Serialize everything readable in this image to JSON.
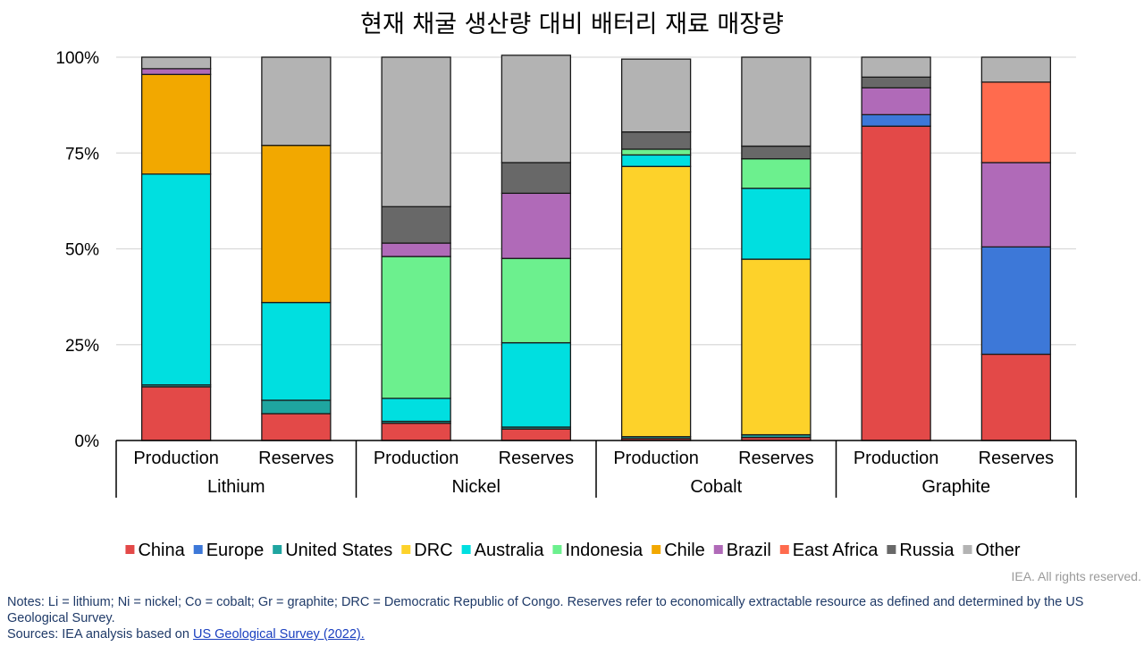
{
  "chart_data": {
    "type": "bar",
    "stacked": true,
    "normalized": true,
    "title": "현재 채굴 생산량 대비 배터리 재료 매장량",
    "ylim": [
      0,
      100
    ],
    "yticks": [
      {
        "value": 0,
        "label": "0%"
      },
      {
        "value": 25,
        "label": "25%"
      },
      {
        "value": 50,
        "label": "50%"
      },
      {
        "value": 75,
        "label": "75%"
      },
      {
        "value": 100,
        "label": "100%"
      }
    ],
    "grid": true,
    "legend_position": "bottom",
    "groups": [
      {
        "label": "Lithium",
        "categories": [
          "Production",
          "Reserves"
        ]
      },
      {
        "label": "Nickel",
        "categories": [
          "Production",
          "Reserves"
        ]
      },
      {
        "label": "Cobalt",
        "categories": [
          "Production",
          "Reserves"
        ]
      },
      {
        "label": "Graphite",
        "categories": [
          "Production",
          "Reserves"
        ]
      }
    ],
    "series": [
      {
        "name": "China",
        "color": "#e34948",
        "values": [
          14,
          7,
          4.5,
          3,
          0.5,
          0.8,
          82,
          22.5
        ]
      },
      {
        "name": "Europe",
        "color": "#3d78d8",
        "values": [
          0,
          0,
          0,
          0,
          0,
          0,
          3,
          28
        ]
      },
      {
        "name": "United States",
        "color": "#1fa5a0",
        "values": [
          0.5,
          3.5,
          0.5,
          0.5,
          0.5,
          0.7,
          0,
          0
        ]
      },
      {
        "name": "DRC",
        "color": "#fdd22a",
        "values": [
          0,
          0,
          0,
          0,
          70.5,
          45.8,
          0,
          0
        ]
      },
      {
        "name": "Australia",
        "color": "#00dfe0",
        "values": [
          55,
          25.5,
          6,
          22,
          3,
          18.5,
          0,
          0
        ]
      },
      {
        "name": "Indonesia",
        "color": "#6cf08e",
        "values": [
          0,
          0,
          37,
          22,
          1.5,
          7.7,
          0,
          0
        ]
      },
      {
        "name": "Chile",
        "color": "#f2a800",
        "values": [
          26,
          41,
          0,
          0,
          0,
          0,
          0,
          0
        ]
      },
      {
        "name": "Brazil",
        "color": "#b06ab8",
        "values": [
          1.5,
          0,
          3.5,
          17,
          0,
          0,
          7,
          22
        ]
      },
      {
        "name": "East Africa",
        "color": "#ff6b4e",
        "values": [
          0,
          0,
          0,
          0,
          0,
          0,
          0,
          21
        ]
      },
      {
        "name": "Russia",
        "color": "#686868",
        "values": [
          0,
          0,
          9.5,
          8,
          4.5,
          3.3,
          2.8,
          0
        ]
      },
      {
        "name": "Other",
        "color": "#b3b3b3",
        "values": [
          3,
          23,
          39,
          28,
          19,
          23.2,
          5.2,
          6.5
        ]
      }
    ]
  },
  "credit": "IEA. All rights reserved.",
  "notes": {
    "notes_text": "Notes: Li = lithium; Ni = nickel; Co = cobalt; Gr = graphite; DRC = Democratic Republic of Congo. Reserves refer to economically extractable resource as defined and determined by the US Geological Survey.",
    "sources_prefix": "Sources: IEA analysis based on ",
    "sources_link": "US Geological Survey (2022)."
  }
}
